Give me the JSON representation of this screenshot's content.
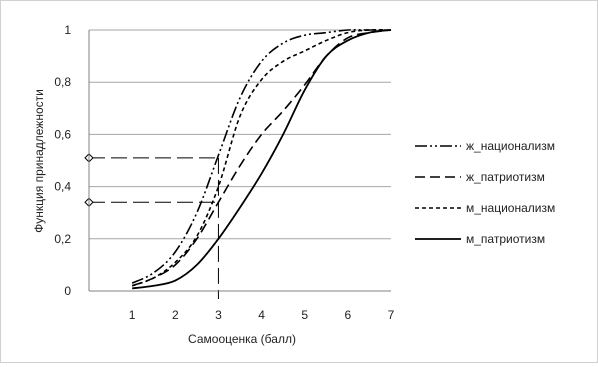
{
  "chart_data": {
    "type": "line",
    "title": "",
    "xlabel": "Самооценка (балл)",
    "ylabel": "Функция принадлежности",
    "xlim": [
      0,
      7
    ],
    "ylim": [
      0,
      1
    ],
    "x_ticks": [
      1,
      2,
      3,
      4,
      5,
      6,
      7
    ],
    "y_ticks": [
      0,
      0.2,
      0.4,
      0.6,
      0.8,
      1
    ],
    "y_tick_labels": [
      "0",
      "0,2",
      "0,4",
      "0,6",
      "0,8",
      "1"
    ],
    "grid": "horizontal",
    "legend_position": "right",
    "series": [
      {
        "name": "ж_национализм",
        "style": "dash-dot-dot",
        "x": [
          1,
          1.5,
          2,
          2.5,
          3,
          3.5,
          4,
          4.5,
          5,
          5.5,
          6,
          6.5,
          7
        ],
        "y": [
          0.03,
          0.07,
          0.15,
          0.3,
          0.52,
          0.74,
          0.88,
          0.95,
          0.98,
          0.99,
          1.0,
          1.0,
          1.0
        ]
      },
      {
        "name": "ж_патриотизм",
        "style": "long-dash",
        "x": [
          1,
          1.5,
          2,
          2.5,
          3,
          3.5,
          4,
          4.5,
          5,
          5.5,
          6,
          6.5,
          7
        ],
        "y": [
          0.02,
          0.05,
          0.1,
          0.2,
          0.34,
          0.48,
          0.6,
          0.69,
          0.79,
          0.9,
          0.97,
          0.99,
          1.0
        ]
      },
      {
        "name": "м_национализм",
        "style": "short-dash",
        "x": [
          1,
          1.5,
          2,
          2.5,
          3,
          3.5,
          4,
          4.5,
          5,
          5.5,
          6,
          6.5,
          7
        ],
        "y": [
          0.02,
          0.05,
          0.11,
          0.21,
          0.4,
          0.67,
          0.81,
          0.88,
          0.92,
          0.96,
          0.99,
          1.0,
          1.0
        ]
      },
      {
        "name": "м_патриотизм",
        "style": "solid",
        "x": [
          1,
          1.5,
          2,
          2.5,
          3,
          3.5,
          4,
          4.5,
          5,
          5.5,
          6,
          6.5,
          7
        ],
        "y": [
          0.01,
          0.02,
          0.04,
          0.1,
          0.2,
          0.32,
          0.45,
          0.6,
          0.77,
          0.9,
          0.96,
          0.99,
          1.0
        ]
      }
    ],
    "annotations": [
      {
        "type": "marker-line",
        "x": 3,
        "y": 0.51
      },
      {
        "type": "marker-line",
        "x": 3,
        "y": 0.34
      }
    ]
  }
}
